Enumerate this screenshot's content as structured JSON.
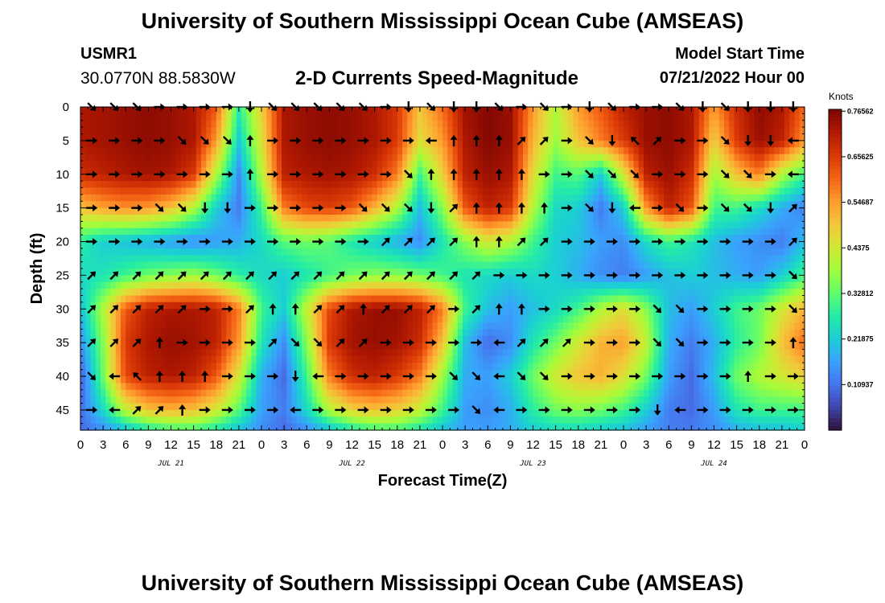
{
  "header": {
    "title": "University of Southern Mississippi Ocean Cube (AMSEAS)",
    "station": "USMR1",
    "coordinates": "30.0770N  88.5830W",
    "subtitle": "2-D Currents Speed-Magnitude",
    "model_start_label": "Model Start Time",
    "model_start_value": "07/21/2022 Hour 00"
  },
  "footer": {
    "title": "University of Southern Mississippi Ocean Cube (AMSEAS)"
  },
  "chart_data": {
    "type": "heatmap",
    "title": "2-D Currents Speed-Magnitude",
    "xlabel": "Forecast Time(Z)",
    "ylabel": "Depth (ft)",
    "xlim": [
      0,
      96
    ],
    "ylim": [
      48,
      0
    ],
    "x_ticks": [
      0,
      3,
      6,
      9,
      12,
      15,
      18,
      21,
      24,
      27,
      30,
      33,
      36,
      39,
      42,
      45,
      48,
      51,
      54,
      57,
      60,
      63,
      66,
      69,
      72,
      75,
      78,
      81,
      84,
      87,
      90,
      93,
      96
    ],
    "x_tick_labels": [
      "0",
      "3",
      "6",
      "9",
      "12",
      "15",
      "18",
      "21",
      "0",
      "3",
      "6",
      "9",
      "12",
      "15",
      "18",
      "21",
      "0",
      "3",
      "6",
      "9",
      "12",
      "15",
      "18",
      "21",
      "0",
      "3",
      "6",
      "9",
      "12",
      "15",
      "18",
      "21",
      "0"
    ],
    "y_ticks": [
      0,
      5,
      10,
      15,
      20,
      25,
      30,
      35,
      40,
      45
    ],
    "y_tick_labels": [
      "0",
      "5",
      "10",
      "15",
      "20",
      "25",
      "30",
      "35",
      "40",
      "45"
    ],
    "day_labels": [
      {
        "text": "JUL 21",
        "hour": 12
      },
      {
        "text": "JUL 22",
        "hour": 36
      },
      {
        "text": "JUL 23",
        "hour": 60
      },
      {
        "text": "JUL 24",
        "hour": 84
      }
    ],
    "colorbar": {
      "units": "Knots",
      "min": 0.0,
      "max": 0.77,
      "tick_values": [
        0.76562,
        0.65625,
        0.54687,
        0.4375,
        0.32812,
        0.21875,
        0.10937
      ],
      "tick_labels": [
        "0.76562",
        "0.65625",
        "0.54687",
        "0.4375",
        "0.32812",
        "0.21875",
        "0.10937"
      ],
      "colors": [
        "#30123b",
        "#4145ab",
        "#4675ed",
        "#39a2fc",
        "#1bcfd4",
        "#24eca6",
        "#61fc6c",
        "#a4fc3b",
        "#d1e834",
        "#f3c63a",
        "#fe9b2d",
        "#f36315",
        "#d93806",
        "#b11901",
        "#7a0403"
      ]
    },
    "speed_field": {
      "x_hours": [
        0,
        3,
        6,
        9,
        12,
        15,
        18,
        21,
        24,
        27,
        30,
        33,
        36,
        39,
        42,
        45,
        48,
        51,
        54,
        57,
        60,
        63,
        66,
        69,
        72,
        75,
        78,
        81,
        84,
        87,
        90,
        93,
        96
      ],
      "depth_ft": [
        0,
        5,
        10,
        15,
        20,
        25,
        30,
        35,
        40,
        45,
        48
      ],
      "knots": [
        [
          0.72,
          0.73,
          0.74,
          0.75,
          0.74,
          0.72,
          0.62,
          0.28,
          0.48,
          0.72,
          0.74,
          0.75,
          0.74,
          0.72,
          0.66,
          0.5,
          0.6,
          0.73,
          0.76,
          0.74,
          0.55,
          0.4,
          0.55,
          0.62,
          0.7,
          0.74,
          0.75,
          0.72,
          0.55,
          0.68,
          0.75,
          0.72,
          0.6
        ],
        [
          0.72,
          0.73,
          0.74,
          0.75,
          0.74,
          0.72,
          0.55,
          0.22,
          0.45,
          0.72,
          0.74,
          0.75,
          0.74,
          0.72,
          0.66,
          0.46,
          0.55,
          0.72,
          0.76,
          0.74,
          0.52,
          0.38,
          0.5,
          0.58,
          0.66,
          0.74,
          0.75,
          0.72,
          0.48,
          0.66,
          0.74,
          0.7,
          0.55
        ],
        [
          0.68,
          0.7,
          0.72,
          0.73,
          0.72,
          0.66,
          0.4,
          0.14,
          0.4,
          0.7,
          0.72,
          0.73,
          0.72,
          0.68,
          0.58,
          0.3,
          0.48,
          0.7,
          0.74,
          0.72,
          0.46,
          0.3,
          0.32,
          0.22,
          0.44,
          0.7,
          0.74,
          0.68,
          0.38,
          0.5,
          0.58,
          0.4,
          0.3
        ],
        [
          0.5,
          0.54,
          0.56,
          0.55,
          0.5,
          0.4,
          0.22,
          0.12,
          0.3,
          0.58,
          0.64,
          0.65,
          0.62,
          0.52,
          0.4,
          0.2,
          0.36,
          0.62,
          0.7,
          0.66,
          0.4,
          0.24,
          0.22,
          0.12,
          0.22,
          0.55,
          0.7,
          0.62,
          0.3,
          0.3,
          0.24,
          0.18,
          0.12
        ],
        [
          0.28,
          0.22,
          0.2,
          0.18,
          0.16,
          0.14,
          0.16,
          0.18,
          0.24,
          0.32,
          0.34,
          0.32,
          0.26,
          0.22,
          0.18,
          0.14,
          0.26,
          0.36,
          0.44,
          0.4,
          0.3,
          0.22,
          0.2,
          0.16,
          0.14,
          0.24,
          0.3,
          0.26,
          0.2,
          0.16,
          0.14,
          0.12,
          0.2
        ],
        [
          0.24,
          0.26,
          0.3,
          0.34,
          0.36,
          0.38,
          0.34,
          0.28,
          0.24,
          0.22,
          0.26,
          0.3,
          0.34,
          0.36,
          0.36,
          0.34,
          0.3,
          0.26,
          0.24,
          0.22,
          0.24,
          0.22,
          0.18,
          0.14,
          0.12,
          0.16,
          0.2,
          0.22,
          0.2,
          0.18,
          0.16,
          0.22,
          0.3
        ],
        [
          0.2,
          0.4,
          0.62,
          0.7,
          0.72,
          0.72,
          0.7,
          0.58,
          0.3,
          0.22,
          0.42,
          0.64,
          0.72,
          0.74,
          0.74,
          0.7,
          0.58,
          0.3,
          0.2,
          0.16,
          0.2,
          0.24,
          0.3,
          0.4,
          0.46,
          0.36,
          0.2,
          0.16,
          0.22,
          0.3,
          0.34,
          0.44,
          0.52
        ],
        [
          0.14,
          0.36,
          0.66,
          0.72,
          0.74,
          0.73,
          0.7,
          0.55,
          0.26,
          0.14,
          0.36,
          0.66,
          0.73,
          0.74,
          0.73,
          0.68,
          0.5,
          0.2,
          0.1,
          0.14,
          0.26,
          0.34,
          0.44,
          0.52,
          0.54,
          0.42,
          0.18,
          0.12,
          0.18,
          0.28,
          0.34,
          0.5,
          0.6
        ],
        [
          0.08,
          0.34,
          0.64,
          0.7,
          0.72,
          0.7,
          0.62,
          0.44,
          0.18,
          0.1,
          0.3,
          0.58,
          0.68,
          0.7,
          0.66,
          0.58,
          0.38,
          0.18,
          0.16,
          0.22,
          0.34,
          0.44,
          0.5,
          0.52,
          0.46,
          0.34,
          0.16,
          0.1,
          0.2,
          0.34,
          0.4,
          0.44,
          0.48
        ],
        [
          0.1,
          0.24,
          0.42,
          0.5,
          0.52,
          0.5,
          0.44,
          0.32,
          0.16,
          0.12,
          0.24,
          0.4,
          0.48,
          0.5,
          0.48,
          0.42,
          0.3,
          0.16,
          0.14,
          0.18,
          0.28,
          0.34,
          0.36,
          0.34,
          0.3,
          0.22,
          0.12,
          0.1,
          0.16,
          0.26,
          0.3,
          0.3,
          0.3
        ],
        [
          0.1,
          0.14,
          0.2,
          0.26,
          0.3,
          0.3,
          0.26,
          0.2,
          0.14,
          0.1,
          0.14,
          0.2,
          0.26,
          0.3,
          0.3,
          0.26,
          0.2,
          0.16,
          0.16,
          0.18,
          0.22,
          0.24,
          0.24,
          0.22,
          0.2,
          0.16,
          0.12,
          0.12,
          0.14,
          0.18,
          0.2,
          0.2,
          0.22
        ]
      ]
    },
    "vector_rows": [
      {
        "depth": 0,
        "dirs": [
          "SE",
          "SE",
          "SE",
          "E",
          "E",
          "E",
          "E",
          "S",
          "SE",
          "SE",
          "SE",
          "SE",
          "SE",
          "E",
          "S",
          "SE",
          "S",
          "S",
          "SE",
          "E",
          "SE",
          "E",
          "S",
          "SE",
          "E",
          "E",
          "SE",
          "S",
          "SE",
          "S",
          "S",
          "S"
        ]
      },
      {
        "depth": 5,
        "dirs": [
          "E",
          "E",
          "E",
          "E",
          "SE",
          "SE",
          "SE",
          "N",
          "E",
          "E",
          "E",
          "E",
          "E",
          "E",
          "E",
          "W",
          "N",
          "N",
          "N",
          "NE",
          "NE",
          "E",
          "SE",
          "S",
          "NW",
          "NE",
          "E",
          "E",
          "SE",
          "S",
          "S",
          "W"
        ]
      },
      {
        "depth": 10,
        "dirs": [
          "E",
          "E",
          "E",
          "E",
          "E",
          "E",
          "E",
          "N",
          "E",
          "E",
          "E",
          "E",
          "E",
          "E",
          "SE",
          "N",
          "N",
          "N",
          "N",
          "N",
          "E",
          "E",
          "SE",
          "SE",
          "SE",
          "E",
          "E",
          "E",
          "SE",
          "SE",
          "E",
          "W"
        ]
      },
      {
        "depth": 15,
        "dirs": [
          "E",
          "E",
          "E",
          "SE",
          "SE",
          "S",
          "S",
          "E",
          "E",
          "E",
          "E",
          "E",
          "SE",
          "SE",
          "SE",
          "S",
          "NE",
          "N",
          "N",
          "N",
          "N",
          "E",
          "SE",
          "S",
          "W",
          "E",
          "SE",
          "E",
          "SE",
          "SE",
          "S",
          "NE"
        ]
      },
      {
        "depth": 20,
        "dirs": [
          "E",
          "E",
          "E",
          "E",
          "E",
          "E",
          "E",
          "E",
          "E",
          "E",
          "E",
          "E",
          "E",
          "NE",
          "NE",
          "NE",
          "NE",
          "N",
          "N",
          "NE",
          "NE",
          "E",
          "E",
          "E",
          "E",
          "E",
          "E",
          "E",
          "E",
          "E",
          "E",
          "NE"
        ]
      },
      {
        "depth": 25,
        "dirs": [
          "NE",
          "NE",
          "NE",
          "NE",
          "NE",
          "NE",
          "NE",
          "NE",
          "NE",
          "NE",
          "NE",
          "NE",
          "NE",
          "NE",
          "NE",
          "NE",
          "NE",
          "NE",
          "E",
          "E",
          "E",
          "E",
          "E",
          "E",
          "E",
          "E",
          "E",
          "E",
          "E",
          "E",
          "E",
          "SE"
        ]
      },
      {
        "depth": 30,
        "dirs": [
          "NE",
          "NE",
          "NE",
          "NE",
          "NE",
          "E",
          "E",
          "NE",
          "N",
          "N",
          "NE",
          "NE",
          "N",
          "NE",
          "NE",
          "NE",
          "E",
          "NE",
          "N",
          "N",
          "E",
          "E",
          "E",
          "E",
          "E",
          "SE",
          "SE",
          "E",
          "E",
          "E",
          "E",
          "SE"
        ]
      },
      {
        "depth": 35,
        "dirs": [
          "NE",
          "NE",
          "NE",
          "N",
          "E",
          "E",
          "E",
          "E",
          "NE",
          "SE",
          "SE",
          "NE",
          "NE",
          "E",
          "E",
          "E",
          "E",
          "E",
          "W",
          "NE",
          "NE",
          "NE",
          "E",
          "E",
          "E",
          "SE",
          "SE",
          "E",
          "E",
          "E",
          "E",
          "N"
        ]
      },
      {
        "depth": 40,
        "dirs": [
          "SE",
          "W",
          "NW",
          "N",
          "N",
          "N",
          "E",
          "E",
          "E",
          "S",
          "W",
          "E",
          "E",
          "E",
          "E",
          "E",
          "SE",
          "SE",
          "W",
          "SE",
          "SE",
          "E",
          "E",
          "E",
          "E",
          "E",
          "E",
          "E",
          "E",
          "N",
          "E",
          "E"
        ]
      },
      {
        "depth": 45,
        "dirs": [
          "E",
          "W",
          "NE",
          "NE",
          "N",
          "E",
          "E",
          "E",
          "E",
          "W",
          "E",
          "E",
          "E",
          "E",
          "E",
          "E",
          "E",
          "SE",
          "W",
          "E",
          "E",
          "E",
          "E",
          "E",
          "E",
          "S",
          "W",
          "E",
          "E",
          "E",
          "E",
          "E"
        ]
      }
    ]
  }
}
